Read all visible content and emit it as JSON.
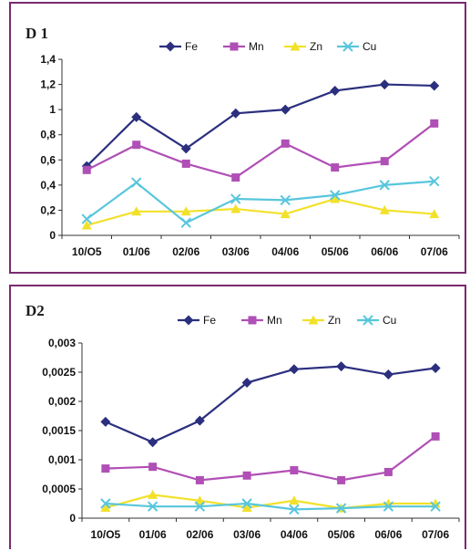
{
  "colors": {
    "panel_border": "#7a2a6e",
    "Fe": "#2b2f7e",
    "Mn": "#b04fb5",
    "Zn": "#f2e12a",
    "Cu": "#58c6dc"
  },
  "chart_data": [
    {
      "type": "line",
      "title": "D 1",
      "categories": [
        "10/O5",
        "01/06",
        "02/06",
        "03/06",
        "04/06",
        "05/06",
        "06/06",
        "07/06"
      ],
      "y_ticks": [
        "0",
        "0,2",
        "0,4",
        "0,6",
        "0,8",
        "1",
        "1,2",
        "1,4"
      ],
      "ylim": [
        0,
        1.4
      ],
      "grid": false,
      "legend_position": "top",
      "series": [
        {
          "name": "Fe",
          "marker": "diamond",
          "values": [
            0.55,
            0.94,
            0.69,
            0.97,
            1.0,
            1.15,
            1.2,
            1.19
          ]
        },
        {
          "name": "Mn",
          "marker": "square",
          "values": [
            0.52,
            0.72,
            0.57,
            0.46,
            0.73,
            0.54,
            0.59,
            0.89
          ]
        },
        {
          "name": "Zn",
          "marker": "triangle",
          "values": [
            0.08,
            0.19,
            0.19,
            0.21,
            0.17,
            0.29,
            0.2,
            0.17
          ]
        },
        {
          "name": "Cu",
          "marker": "x",
          "values": [
            0.13,
            0.42,
            0.1,
            0.29,
            0.28,
            0.32,
            0.4,
            0.43
          ]
        }
      ]
    },
    {
      "type": "line",
      "title": "D2",
      "categories": [
        "10/O5",
        "01/06",
        "02/06",
        "03/06",
        "04/06",
        "05/06",
        "06/06",
        "07/06"
      ],
      "y_ticks": [
        "0",
        "0,0005",
        "0,001",
        "0,0015",
        "0,002",
        "0,0025",
        "0,003"
      ],
      "ylim": [
        0,
        0.003
      ],
      "grid": false,
      "legend_position": "top",
      "series": [
        {
          "name": "Fe",
          "marker": "diamond",
          "values": [
            0.00165,
            0.0013,
            0.00167,
            0.00232,
            0.00255,
            0.0026,
            0.00246,
            0.00257
          ]
        },
        {
          "name": "Mn",
          "marker": "square",
          "values": [
            0.00085,
            0.00088,
            0.00065,
            0.00073,
            0.00082,
            0.00065,
            0.00079,
            0.0014
          ]
        },
        {
          "name": "Zn",
          "marker": "triangle",
          "values": [
            0.00018,
            0.0004,
            0.0003,
            0.00018,
            0.0003,
            0.00017,
            0.00025,
            0.00025
          ]
        },
        {
          "name": "Cu",
          "marker": "x",
          "values": [
            0.00025,
            0.0002,
            0.0002,
            0.00025,
            0.00015,
            0.00017,
            0.0002,
            0.0002
          ]
        }
      ]
    }
  ]
}
